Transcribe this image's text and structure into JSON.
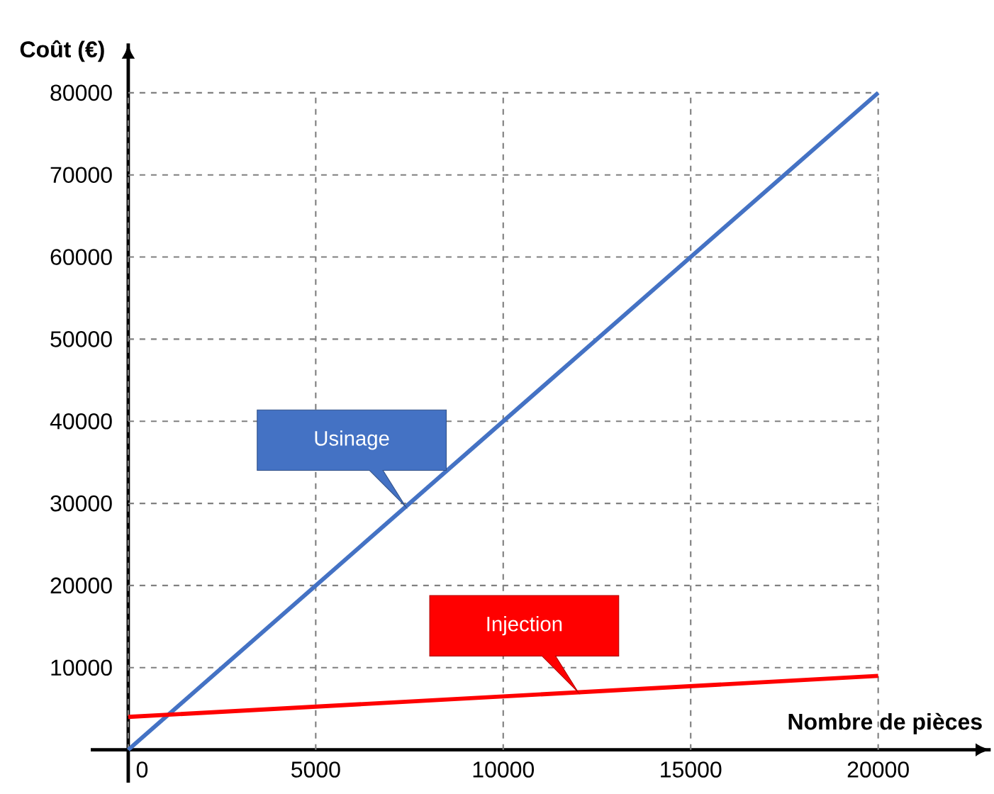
{
  "chart_data": {
    "type": "line",
    "xlabel": "Nombre de pièces",
    "ylabel": "Coût (€)",
    "x": [
      0,
      20000
    ],
    "xlim": [
      -1000,
      23000
    ],
    "ylim": [
      -4000,
      86000
    ],
    "xticks": [
      0,
      5000,
      10000,
      15000,
      20000
    ],
    "yticks": [
      10000,
      20000,
      30000,
      40000,
      50000,
      60000,
      70000,
      80000
    ],
    "grid": true,
    "marker": "none",
    "line_style": "solid",
    "series": [
      {
        "name": "Usinage",
        "color": "#4472c4",
        "values": [
          0,
          80000
        ]
      },
      {
        "name": "Injection",
        "color": "#ff0000",
        "values": [
          4000,
          9000
        ]
      }
    ]
  }
}
